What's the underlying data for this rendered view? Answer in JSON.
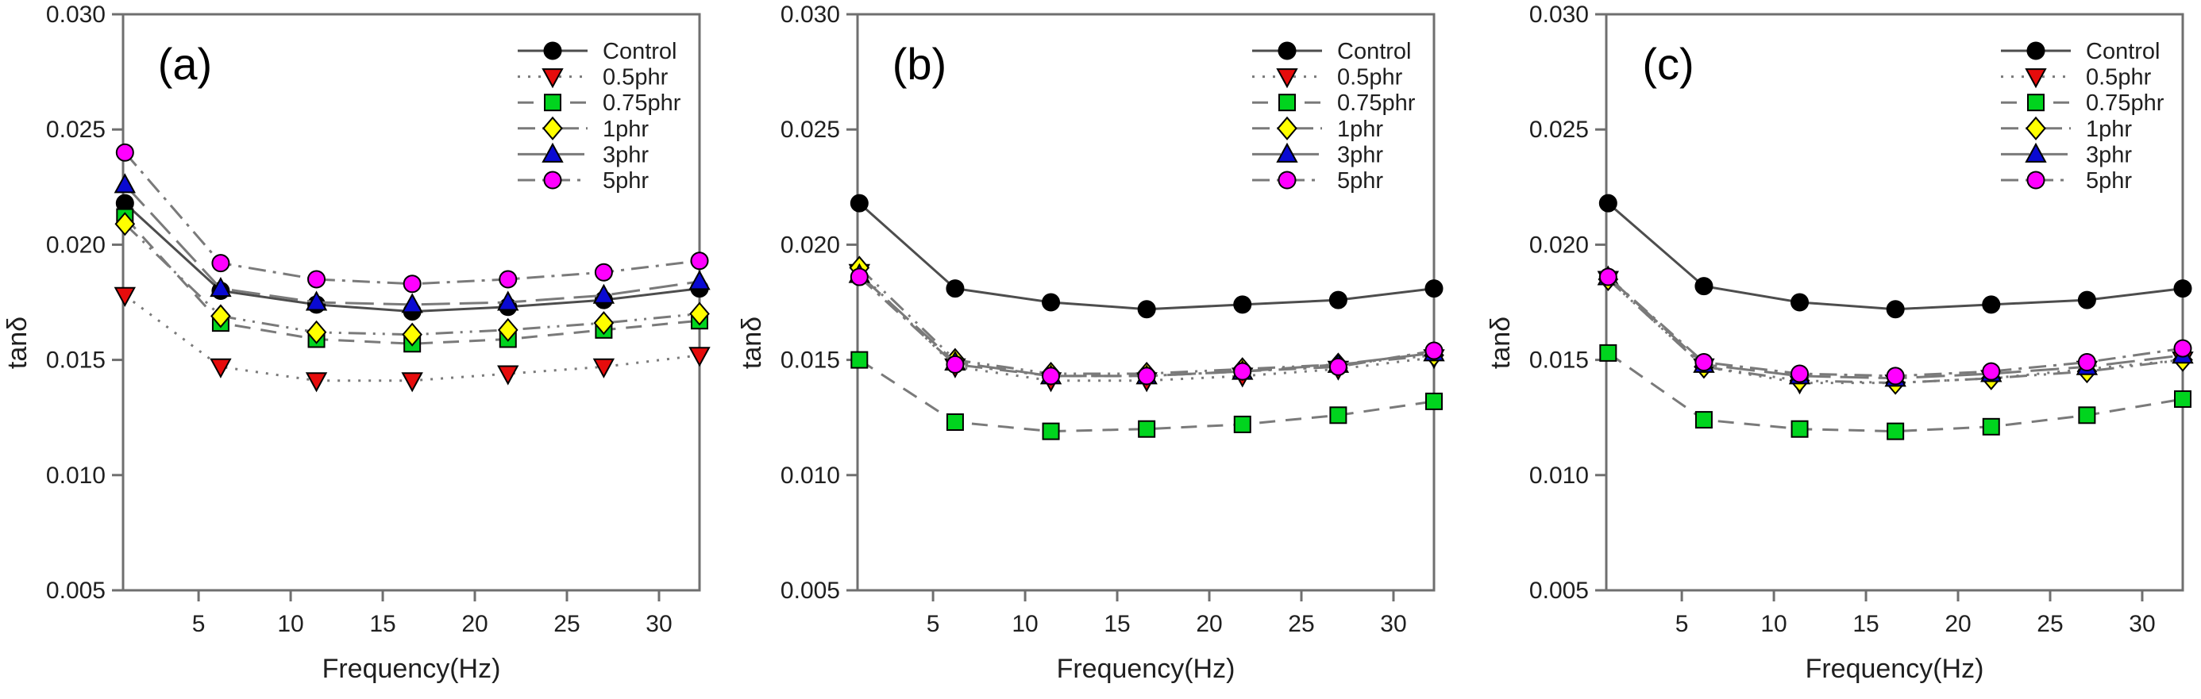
{
  "figure": {
    "background": "#ffffff",
    "panel_labels": [
      "(a)",
      "(b)",
      "(c)"
    ],
    "x_axis_label": "Frequency(Hz)",
    "y_axis_label": "tanδ",
    "frame_color": "#6f6f6f",
    "line_gray": "#7a7a7a",
    "text_color": "#1f1f1f"
  },
  "legend": {
    "items": [
      "Control",
      "0.5phr",
      "0.75phr",
      "1phr",
      "3phr",
      "5phr"
    ],
    "position": "upper-right"
  },
  "chart_data": [
    {
      "type": "line",
      "title": "(a)",
      "xlabel": "Frequency(Hz)",
      "ylabel": "tanδ",
      "x": [
        1,
        6.2,
        11.4,
        16.6,
        21.8,
        27,
        32.2
      ],
      "xlim": [
        0.9,
        32.2
      ],
      "ylim": [
        0.005,
        0.03
      ],
      "xticks": [
        5,
        10,
        15,
        20,
        25,
        30
      ],
      "yticks": [
        0.005,
        0.01,
        0.015,
        0.02,
        0.025,
        0.03
      ],
      "grid": false,
      "legend_position": "upper right",
      "series": [
        {
          "name": "Control",
          "color": "#000000",
          "marker": "circle",
          "line": "solid",
          "values": [
            0.0218,
            0.018,
            0.0174,
            0.0171,
            0.0173,
            0.0176,
            0.0181
          ]
        },
        {
          "name": "0.5phr",
          "color": "#e60c0c",
          "marker": "triangle-down",
          "line": "dotted",
          "values": [
            0.0178,
            0.0147,
            0.0141,
            0.0141,
            0.0144,
            0.0147,
            0.0152
          ]
        },
        {
          "name": "0.75phr",
          "color": "#00d41e",
          "marker": "square",
          "line": "dashed",
          "values": [
            0.0212,
            0.0166,
            0.0159,
            0.0157,
            0.0159,
            0.0163,
            0.0167
          ]
        },
        {
          "name": "1phr",
          "color": "#ffff00",
          "marker": "diamond",
          "line": "dash-dot-dot",
          "values": [
            0.0209,
            0.0169,
            0.0162,
            0.0161,
            0.0163,
            0.0166,
            0.017
          ]
        },
        {
          "name": "3phr",
          "color": "#0a0ad2",
          "marker": "triangle-up",
          "line": "long-dash",
          "values": [
            0.0226,
            0.0181,
            0.0175,
            0.0174,
            0.0175,
            0.0178,
            0.0184
          ]
        },
        {
          "name": "5phr",
          "color": "#ff00ff",
          "marker": "circle",
          "line": "dash-dot",
          "values": [
            0.024,
            0.0192,
            0.0185,
            0.0183,
            0.0185,
            0.0188,
            0.0193
          ]
        }
      ]
    },
    {
      "type": "line",
      "title": "(b)",
      "xlabel": "Frequency(Hz)",
      "ylabel": "tanδ",
      "x": [
        1,
        6.2,
        11.4,
        16.6,
        21.8,
        27,
        32.2
      ],
      "xlim": [
        0.9,
        32.2
      ],
      "ylim": [
        0.005,
        0.03
      ],
      "xticks": [
        5,
        10,
        15,
        20,
        25,
        30
      ],
      "yticks": [
        0.005,
        0.01,
        0.015,
        0.02,
        0.025,
        0.03
      ],
      "grid": false,
      "legend_position": "upper right",
      "series": [
        {
          "name": "Control",
          "color": "#000000",
          "marker": "circle",
          "line": "solid",
          "values": [
            0.0218,
            0.0181,
            0.0175,
            0.0172,
            0.0174,
            0.0176,
            0.0181
          ]
        },
        {
          "name": "0.5phr",
          "color": "#e60c0c",
          "marker": "triangle-down",
          "line": "dotted",
          "values": [
            0.0188,
            0.0147,
            0.0141,
            0.0141,
            0.0143,
            0.0146,
            0.0151
          ]
        },
        {
          "name": "0.75phr",
          "color": "#00d41e",
          "marker": "square",
          "line": "dashed",
          "values": [
            0.015,
            0.0123,
            0.0119,
            0.012,
            0.0122,
            0.0126,
            0.0132
          ]
        },
        {
          "name": "1phr",
          "color": "#ffff00",
          "marker": "diamond",
          "line": "dash-dot-dot",
          "values": [
            0.019,
            0.015,
            0.0144,
            0.0144,
            0.0146,
            0.0148,
            0.0152
          ]
        },
        {
          "name": "3phr",
          "color": "#0a0ad2",
          "marker": "triangle-up",
          "line": "long-dash",
          "values": [
            0.0187,
            0.0149,
            0.0143,
            0.0143,
            0.0145,
            0.0148,
            0.0153
          ]
        },
        {
          "name": "5phr",
          "color": "#ff00ff",
          "marker": "circle",
          "line": "dash-dot",
          "values": [
            0.0186,
            0.0148,
            0.0143,
            0.0143,
            0.0145,
            0.0147,
            0.0154
          ]
        }
      ]
    },
    {
      "type": "line",
      "title": "(c)",
      "xlabel": "Frequency(Hz)",
      "ylabel": "tanδ",
      "x": [
        1,
        6.2,
        11.4,
        16.6,
        21.8,
        27,
        32.2
      ],
      "xlim": [
        0.9,
        32.2
      ],
      "ylim": [
        0.005,
        0.03
      ],
      "xticks": [
        5,
        10,
        15,
        20,
        25,
        30
      ],
      "yticks": [
        0.005,
        0.01,
        0.015,
        0.02,
        0.025,
        0.03
      ],
      "grid": false,
      "legend_position": "upper right",
      "series": [
        {
          "name": "Control",
          "color": "#000000",
          "marker": "circle",
          "line": "solid",
          "values": [
            0.0218,
            0.0182,
            0.0175,
            0.0172,
            0.0174,
            0.0176,
            0.0181
          ]
        },
        {
          "name": "0.5phr",
          "color": "#e60c0c",
          "marker": "triangle-down",
          "line": "dotted",
          "values": [
            0.0185,
            0.0147,
            0.014,
            0.014,
            0.0142,
            0.0146,
            0.015
          ]
        },
        {
          "name": "0.75phr",
          "color": "#00d41e",
          "marker": "square",
          "line": "dashed",
          "values": [
            0.0153,
            0.0124,
            0.012,
            0.0119,
            0.0121,
            0.0126,
            0.0133
          ]
        },
        {
          "name": "1phr",
          "color": "#ffff00",
          "marker": "diamond",
          "line": "dash-dot-dot",
          "values": [
            0.0185,
            0.0147,
            0.0141,
            0.014,
            0.0142,
            0.0145,
            0.015
          ]
        },
        {
          "name": "3phr",
          "color": "#0a0ad2",
          "marker": "triangle-up",
          "line": "long-dash",
          "values": [
            0.0186,
            0.0148,
            0.0143,
            0.0142,
            0.0144,
            0.0147,
            0.0152
          ]
        },
        {
          "name": "5phr",
          "color": "#ff00ff",
          "marker": "circle",
          "line": "dash-dot",
          "values": [
            0.0186,
            0.0149,
            0.0144,
            0.0143,
            0.0145,
            0.0149,
            0.0155
          ]
        }
      ]
    }
  ]
}
